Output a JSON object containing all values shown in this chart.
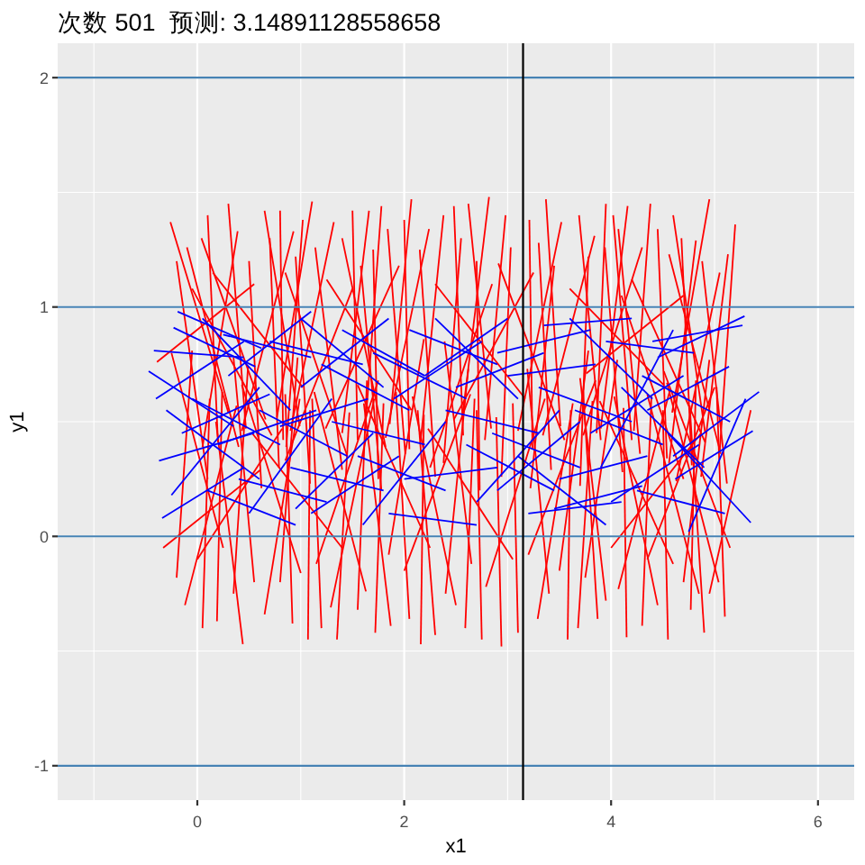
{
  "chart_data": {
    "type": "line",
    "title": "次数 501  预测: 3.14891128558658",
    "xlabel": "x1",
    "ylabel": "y1",
    "xlim": [
      -1.35,
      6.35
    ],
    "ylim": [
      -1.15,
      2.15
    ],
    "xticks": [
      0,
      2,
      4,
      6
    ],
    "yticks": [
      -1,
      0,
      1,
      2
    ],
    "grid": true,
    "ref_lines": [
      {
        "axis": "y",
        "value": -1,
        "color": "#4682b4"
      },
      {
        "axis": "y",
        "value": 0,
        "color": "#4682b4"
      },
      {
        "axis": "y",
        "value": 1,
        "color": "#4682b4"
      },
      {
        "axis": "y",
        "value": 2,
        "color": "#4682b4"
      },
      {
        "axis": "x",
        "value": 3.14891128558658,
        "color": "#000000"
      }
    ],
    "series": [
      {
        "color": "#ff0000",
        "x": [
          -0.26,
          0.3
        ],
        "values": [
          1.37,
          0.54
        ]
      },
      {
        "color": "#ff0000",
        "x": [
          -0.1,
          0.4
        ],
        "values": [
          1.26,
          0.39
        ]
      },
      {
        "color": "#ff0000",
        "x": [
          0.04,
          0.66
        ],
        "values": [
          1.3,
          0.51
        ]
      },
      {
        "color": "#ff0000",
        "x": [
          0.3,
          0.47
        ],
        "values": [
          1.45,
          0.47
        ]
      },
      {
        "color": "#ff0000",
        "x": [
          0.39,
          0.05
        ],
        "values": [
          1.33,
          0.39
        ]
      },
      {
        "color": "#ff0000",
        "x": [
          0.65,
          0.99
        ],
        "values": [
          1.42,
          0.48
        ]
      },
      {
        "color": "#ff0000",
        "x": [
          0.8,
          0.83
        ],
        "values": [
          1.42,
          0.42
        ]
      },
      {
        "color": "#ff0000",
        "x": [
          0.93,
          0.43
        ],
        "values": [
          1.33,
          0.46
        ]
      },
      {
        "color": "#ff0000",
        "x": [
          1.11,
          0.77
        ],
        "values": [
          1.46,
          0.52
        ]
      },
      {
        "color": "#ff0000",
        "x": [
          1.14,
          1.4
        ],
        "values": [
          1.26,
          0.29
        ]
      },
      {
        "color": "#ff0000",
        "x": [
          1.32,
          0.9
        ],
        "values": [
          1.37,
          0.46
        ]
      },
      {
        "color": "#ff0000",
        "x": [
          1.5,
          1.55
        ],
        "values": [
          1.42,
          0.42
        ]
      },
      {
        "color": "#ff0000",
        "x": [
          1.66,
          1.4
        ],
        "values": [
          1.42,
          0.45
        ]
      },
      {
        "color": "#ff0000",
        "x": [
          1.84,
          2.01
        ],
        "values": [
          1.34,
          0.36
        ]
      },
      {
        "color": "#ff0000",
        "x": [
          2.07,
          1.86
        ],
        "values": [
          1.47,
          0.49
        ]
      },
      {
        "color": "#ff0000",
        "x": [
          2.24,
          1.82
        ],
        "values": [
          1.34,
          0.43
        ]
      },
      {
        "color": "#ff0000",
        "x": [
          2.48,
          2.57
        ],
        "values": [
          1.44,
          0.44
        ]
      },
      {
        "color": "#ff0000",
        "x": [
          2.82,
          2.56
        ],
        "values": [
          1.48,
          0.51
        ]
      },
      {
        "color": "#ff0000",
        "x": [
          2.91,
          3.55
        ],
        "values": [
          1.19,
          0.42
        ]
      },
      {
        "color": "#ff0000",
        "x": [
          3.03,
          2.94
        ],
        "values": [
          1.26,
          0.26
        ]
      },
      {
        "color": "#ff0000",
        "x": [
          3.37,
          3.51
        ],
        "values": [
          1.47,
          0.48
        ]
      },
      {
        "color": "#ff0000",
        "x": [
          3.52,
          3.1
        ],
        "values": [
          1.37,
          0.46
        ]
      },
      {
        "color": "#ff0000",
        "x": [
          3.69,
          3.9
        ],
        "values": [
          1.4,
          0.42
        ]
      },
      {
        "color": "#ff0000",
        "x": [
          3.84,
          3.34
        ],
        "values": [
          1.31,
          0.44
        ]
      },
      {
        "color": "#ff0000",
        "x": [
          3.94,
          4.11
        ],
        "values": [
          1.26,
          0.28
        ]
      },
      {
        "color": "#ff0000",
        "x": [
          4.07,
          4.28
        ],
        "values": [
          1.34,
          0.36
        ]
      },
      {
        "color": "#ff0000",
        "x": [
          4.16,
          3.9
        ],
        "values": [
          1.44,
          0.47
        ]
      },
      {
        "color": "#ff0000",
        "x": [
          4.3,
          3.73
        ],
        "values": [
          1.26,
          0.44
        ]
      },
      {
        "color": "#ff0000",
        "x": [
          4.45,
          4.54
        ],
        "values": [
          1.34,
          0.34
        ]
      },
      {
        "color": "#ff0000",
        "x": [
          4.56,
          5.06
        ],
        "values": [
          1.23,
          0.36
        ]
      },
      {
        "color": "#ff0000",
        "x": [
          4.82,
          4.56
        ],
        "values": [
          1.29,
          0.32
        ]
      },
      {
        "color": "#ff0000",
        "x": [
          4.95,
          4.59
        ],
        "values": [
          1.47,
          0.54
        ]
      },
      {
        "color": "#ff0000",
        "x": [
          5.13,
          4.87
        ],
        "values": [
          1.23,
          0.26
        ]
      },
      {
        "color": "#ff0000",
        "x": [
          0.15,
          1.02
        ],
        "values": [
          1.15,
          0.65
        ]
      },
      {
        "color": "#ff0000",
        "x": [
          0.55,
          -0.39
        ],
        "values": [
          1.1,
          0.76
        ]
      },
      {
        "color": "#ff0000",
        "x": [
          1.25,
          2.07
        ],
        "values": [
          1.12,
          0.55
        ]
      },
      {
        "color": "#ff0000",
        "x": [
          1.95,
          1.24
        ],
        "values": [
          1.18,
          0.47
        ]
      },
      {
        "color": "#ff0000",
        "x": [
          2.3,
          3.17
        ],
        "values": [
          1.1,
          0.6
        ]
      },
      {
        "color": "#ff0000",
        "x": [
          2.7,
          2.73
        ],
        "values": [
          1.2,
          0.2
        ]
      },
      {
        "color": "#ff0000",
        "x": [
          3.25,
          2.48
        ],
        "values": [
          1.15,
          0.51
        ]
      },
      {
        "color": "#ff0000",
        "x": [
          3.6,
          4.51
        ],
        "values": [
          1.08,
          0.66
        ]
      },
      {
        "color": "#ff0000",
        "x": [
          4.2,
          4.91
        ],
        "values": [
          1.12,
          0.41
        ]
      },
      {
        "color": "#ff0000",
        "x": [
          4.7,
          3.76
        ],
        "values": [
          1.05,
          0.71
        ]
      },
      {
        "color": "#ff0000",
        "x": [
          -0.05,
          0.72
        ],
        "values": [
          1.08,
          0.44
        ]
      },
      {
        "color": "#ff0000",
        "x": [
          0.95,
          1.09
        ],
        "values": [
          1.22,
          0.23
        ]
      },
      {
        "color": "#ff0000",
        "x": [
          1.7,
          1.75
        ],
        "values": [
          1.25,
          0.25
        ]
      },
      {
        "color": "#ff0000",
        "x": [
          2.55,
          2.38
        ],
        "values": [
          1.3,
          0.32
        ]
      },
      {
        "color": "#ff0000",
        "x": [
          3.21,
          3.24
        ],
        "values": [
          1.38,
          0.38
        ]
      },
      {
        "color": "#ff0000",
        "x": [
          3.95,
          3.86
        ],
        "values": [
          1.45,
          0.45
        ]
      },
      {
        "color": "#ff0000",
        "x": [
          5.05,
          4.63
        ],
        "values": [
          1.15,
          0.24
        ]
      },
      {
        "color": "#ff0000",
        "x": [
          0.7,
          0.79
        ],
        "values": [
          1.3,
          0.3
        ]
      },
      {
        "color": "#ff0000",
        "x": [
          1.4,
          1.82
        ],
        "values": [
          1.3,
          0.39
        ]
      },
      {
        "color": "#ff0000",
        "x": [
          2.0,
          2.05
        ],
        "values": [
          1.38,
          0.38
        ]
      },
      {
        "color": "#ff0000",
        "x": [
          4.6,
          4.91
        ],
        "values": [
          1.4,
          0.45
        ]
      },
      {
        "color": "#ff0000",
        "x": [
          0.1,
          0.2
        ],
        "values": [
          1.4,
          0.41
        ]
      },
      {
        "color": "#ff0000",
        "x": [
          0.5,
          0.62
        ],
        "values": [
          1.2,
          0.21
        ]
      },
      {
        "color": "#ff0000",
        "x": [
          1.02,
          0.86
        ],
        "values": [
          1.38,
          0.39
        ]
      },
      {
        "color": "#ff0000",
        "x": [
          1.58,
          1.78
        ],
        "values": [
          1.18,
          0.2
        ]
      },
      {
        "color": "#ff0000",
        "x": [
          1.78,
          1.62
        ],
        "values": [
          1.44,
          0.45
        ]
      },
      {
        "color": "#ff0000",
        "x": [
          2.15,
          2.3
        ],
        "values": [
          1.25,
          0.26
        ]
      },
      {
        "color": "#ff0000",
        "x": [
          2.38,
          2.16
        ],
        "values": [
          1.4,
          0.42
        ]
      },
      {
        "color": "#ff0000",
        "x": [
          2.62,
          2.84
        ],
        "values": [
          1.45,
          0.47
        ]
      },
      {
        "color": "#ff0000",
        "x": [
          2.98,
          2.78
        ],
        "values": [
          1.4,
          0.42
        ]
      },
      {
        "color": "#ff0000",
        "x": [
          3.3,
          3.42
        ],
        "values": [
          1.28,
          0.29
        ]
      },
      {
        "color": "#ff0000",
        "x": [
          3.45,
          3.22
        ],
        "values": [
          1.18,
          0.21
        ]
      },
      {
        "color": "#ff0000",
        "x": [
          3.78,
          3.7
        ],
        "values": [
          1.22,
          0.22
        ]
      },
      {
        "color": "#ff0000",
        "x": [
          4.02,
          4.2
        ],
        "values": [
          1.4,
          0.42
        ]
      },
      {
        "color": "#ff0000",
        "x": [
          4.38,
          4.22
        ],
        "values": [
          1.45,
          0.46
        ]
      },
      {
        "color": "#ff0000",
        "x": [
          4.68,
          4.78
        ],
        "values": [
          1.3,
          0.31
        ]
      },
      {
        "color": "#ff0000",
        "x": [
          4.88,
          5.12
        ],
        "values": [
          1.2,
          0.23
        ]
      },
      {
        "color": "#ff0000",
        "x": [
          5.2,
          5.05
        ],
        "values": [
          1.36,
          0.37
        ]
      },
      {
        "color": "#ff0000",
        "x": [
          -0.2,
          0.1
        ],
        "values": [
          1.2,
          0.25
        ]
      },
      {
        "color": "#ff0000",
        "x": [
          0.85,
          1.45
        ],
        "values": [
          1.15,
          0.35
        ]
      },
      {
        "color": "#ff0000",
        "x": [
          1.5,
          0.85
        ],
        "values": [
          1.08,
          0.33
        ]
      },
      {
        "color": "#ff0000",
        "x": [
          2.85,
          2.25
        ],
        "values": [
          1.1,
          0.3
        ]
      },
      {
        "color": "#ff0000",
        "x": [
          4.1,
          4.7
        ],
        "values": [
          1.05,
          0.25
        ]
      },
      {
        "color": "#ff0000",
        "x": [
          -0.12,
          0.38
        ],
        "values": [
          -0.3,
          0.57
        ]
      },
      {
        "color": "#ff0000",
        "x": [
          0.19,
          0.24
        ],
        "values": [
          -0.37,
          0.63
        ]
      },
      {
        "color": "#ff0000",
        "x": [
          0.44,
          0.18
        ],
        "values": [
          -0.47,
          0.5
        ]
      },
      {
        "color": "#ff0000",
        "x": [
          0.65,
          0.99
        ],
        "values": [
          -0.34,
          0.6
        ]
      },
      {
        "color": "#ff0000",
        "x": [
          1.0,
          0.43
        ],
        "values": [
          -0.16,
          0.66
        ]
      },
      {
        "color": "#ff0000",
        "x": [
          1.07,
          1.09
        ],
        "values": [
          -0.45,
          0.55
        ]
      },
      {
        "color": "#ff0000",
        "x": [
          1.29,
          1.71
        ],
        "values": [
          -0.31,
          0.6
        ]
      },
      {
        "color": "#ff0000",
        "x": [
          1.55,
          1.64
        ],
        "values": [
          -0.32,
          0.68
        ]
      },
      {
        "color": "#ff0000",
        "x": [
          1.63,
          1.13
        ],
        "values": [
          -0.24,
          0.63
        ]
      },
      {
        "color": "#ff0000",
        "x": [
          1.87,
          1.61
        ],
        "values": [
          -0.39,
          0.58
        ]
      },
      {
        "color": "#ff0000",
        "x": [
          2.16,
          2.19
        ],
        "values": [
          -0.47,
          0.53
        ]
      },
      {
        "color": "#ff0000",
        "x": [
          2.3,
          2.13
        ],
        "values": [
          -0.43,
          0.55
        ]
      },
      {
        "color": "#ff0000",
        "x": [
          2.5,
          2.08
        ],
        "values": [
          -0.3,
          0.61
        ]
      },
      {
        "color": "#ff0000",
        "x": [
          -0.33,
          0.61
        ],
        "values": [
          -0.05,
          0.29
        ]
      },
      {
        "color": "#ff0000",
        "x": [
          2.59,
          2.68
        ],
        "values": [
          -0.4,
          0.6
        ]
      },
      {
        "color": "#ff0000",
        "x": [
          2.94,
          2.89
        ],
        "values": [
          -0.48,
          0.52
        ]
      },
      {
        "color": "#ff0000",
        "x": [
          3.29,
          3.63
        ],
        "values": [
          -0.36,
          0.58
        ]
      },
      {
        "color": "#ff0000",
        "x": [
          3.58,
          3.61
        ],
        "values": [
          -0.45,
          0.55
        ]
      },
      {
        "color": "#ff0000",
        "x": [
          3.87,
          3.73
        ],
        "values": [
          -0.36,
          0.63
        ]
      },
      {
        "color": "#ff0000",
        "x": [
          4.07,
          4.57
        ],
        "values": [
          -0.23,
          0.64
        ]
      },
      {
        "color": "#ff0000",
        "x": [
          4.3,
          4.39
        ],
        "values": [
          -0.39,
          0.61
        ]
      },
      {
        "color": "#ff0000",
        "x": [
          4.45,
          4.03
        ],
        "values": [
          -0.3,
          0.61
        ]
      },
      {
        "color": "#ff0000",
        "x": [
          4.77,
          4.82
        ],
        "values": [
          -0.32,
          0.68
        ]
      },
      {
        "color": "#ff0000",
        "x": [
          5.04,
          4.54
        ],
        "values": [
          -0.2,
          0.67
        ]
      },
      {
        "color": "#ff0000",
        "x": [
          2.79,
          3.36
        ],
        "values": [
          -0.22,
          0.6
        ]
      },
      {
        "color": "#ff0000",
        "x": [
          0.0,
          0.82
        ],
        "values": [
          -0.1,
          0.47
        ]
      },
      {
        "color": "#ff0000",
        "x": [
          0.8,
          0.97
        ],
        "values": [
          -0.2,
          0.78
        ]
      },
      {
        "color": "#ff0000",
        "x": [
          1.4,
          0.53
        ],
        "values": [
          -0.05,
          0.45
        ]
      },
      {
        "color": "#ff0000",
        "x": [
          2.0,
          2.64
        ],
        "values": [
          -0.15,
          0.62
        ]
      },
      {
        "color": "#ff0000",
        "x": [
          3.05,
          2.23
        ],
        "values": [
          -0.1,
          0.47
        ]
      },
      {
        "color": "#ff0000",
        "x": [
          3.4,
          3.19
        ],
        "values": [
          -0.25,
          0.73
        ]
      },
      {
        "color": "#ff0000",
        "x": [
          4.0,
          4.87
        ],
        "values": [
          -0.05,
          0.45
        ]
      },
      {
        "color": "#ff0000",
        "x": [
          4.6,
          3.89
        ],
        "values": [
          -0.12,
          0.59
        ]
      },
      {
        "color": "#ff0000",
        "x": [
          5.15,
          4.51
        ],
        "values": [
          -0.05,
          0.72
        ]
      },
      {
        "color": "#ff0000",
        "x": [
          0.35,
          0.49
        ],
        "values": [
          -0.25,
          0.74
        ]
      },
      {
        "color": "#ff0000",
        "x": [
          1.2,
          1.11
        ],
        "values": [
          -0.4,
          0.6
        ]
      },
      {
        "color": "#ff0000",
        "x": [
          1.85,
          2.19
        ],
        "values": [
          -0.08,
          0.86
        ]
      },
      {
        "color": "#ff0000",
        "x": [
          2.65,
          2.39
        ],
        "values": [
          -0.12,
          0.85
        ]
      },
      {
        "color": "#ff0000",
        "x": [
          3.75,
          4.06
        ],
        "values": [
          -0.18,
          0.77
        ]
      },
      {
        "color": "#ff0000",
        "x": [
          4.9,
          4.76
        ],
        "values": [
          -0.42,
          0.57
        ]
      },
      {
        "color": "#ff0000",
        "x": [
          4.95,
          5.35
        ],
        "values": [
          -0.25,
          0.55
        ]
      },
      {
        "color": "#ff0000",
        "x": [
          0.05,
          0.12
        ],
        "values": [
          -0.4,
          0.6
        ]
      },
      {
        "color": "#ff0000",
        "x": [
          0.55,
          0.35
        ],
        "values": [
          -0.2,
          0.78
        ]
      },
      {
        "color": "#ff0000",
        "x": [
          0.92,
          0.85
        ],
        "values": [
          -0.38,
          0.62
        ]
      },
      {
        "color": "#ff0000",
        "x": [
          1.35,
          1.47
        ],
        "values": [
          -0.45,
          0.54
        ]
      },
      {
        "color": "#ff0000",
        "x": [
          1.72,
          1.8
        ],
        "values": [
          -0.42,
          0.58
        ]
      },
      {
        "color": "#ff0000",
        "x": [
          2.05,
          1.92
        ],
        "values": [
          -0.36,
          0.63
        ]
      },
      {
        "color": "#ff0000",
        "x": [
          2.4,
          2.62
        ],
        "values": [
          -0.25,
          0.73
        ]
      },
      {
        "color": "#ff0000",
        "x": [
          2.75,
          2.7
        ],
        "values": [
          -0.45,
          0.55
        ]
      },
      {
        "color": "#ff0000",
        "x": [
          3.1,
          3.05
        ],
        "values": [
          -0.42,
          0.58
        ]
      },
      {
        "color": "#ff0000",
        "x": [
          3.5,
          3.78
        ],
        "values": [
          -0.15,
          0.81
        ]
      },
      {
        "color": "#ff0000",
        "x": [
          3.68,
          3.82
        ],
        "values": [
          -0.4,
          0.59
        ]
      },
      {
        "color": "#ff0000",
        "x": [
          4.15,
          4.12
        ],
        "values": [
          -0.44,
          0.56
        ]
      },
      {
        "color": "#ff0000",
        "x": [
          4.55,
          4.5
        ],
        "values": [
          -0.45,
          0.55
        ]
      },
      {
        "color": "#ff0000",
        "x": [
          4.7,
          4.95
        ],
        "values": [
          -0.2,
          0.77
        ]
      },
      {
        "color": "#ff0000",
        "x": [
          5.1,
          5.02
        ],
        "values": [
          -0.35,
          0.65
        ]
      },
      {
        "color": "#ff0000",
        "x": [
          -0.2,
          -0.05
        ],
        "values": [
          -0.18,
          0.81
        ]
      },
      {
        "color": "#ff0000",
        "x": [
          0.25,
          -0.25
        ],
        "values": [
          -0.05,
          0.8
        ]
      },
      {
        "color": "#ff0000",
        "x": [
          1.15,
          1.75
        ],
        "values": [
          -0.12,
          0.68
        ]
      },
      {
        "color": "#ff0000",
        "x": [
          2.25,
          1.55
        ],
        "values": [
          -0.05,
          0.66
        ]
      },
      {
        "color": "#ff0000",
        "x": [
          3.2,
          3.85
        ],
        "values": [
          -0.08,
          0.68
        ]
      },
      {
        "color": "#ff0000",
        "x": [
          3.95,
          3.7
        ],
        "values": [
          -0.28,
          0.69
        ]
      },
      {
        "color": "#ff0000",
        "x": [
          4.35,
          5.0
        ],
        "values": [
          -0.1,
          0.65
        ]
      },
      {
        "color": "#ff0000",
        "x": [
          4.85,
          4.35
        ],
        "values": [
          -0.25,
          0.62
        ]
      },
      {
        "color": "#0000ff",
        "x": [
          -0.47,
          0.35
        ],
        "values": [
          0.72,
          0.48
        ]
      },
      {
        "color": "#0000ff",
        "x": [
          -0.19,
          0.62
        ],
        "values": [
          0.98,
          0.82
        ]
      },
      {
        "color": "#0000ff",
        "x": [
          -0.23,
          0.56
        ],
        "values": [
          0.91,
          0.74
        ]
      },
      {
        "color": "#0000ff",
        "x": [
          -0.42,
          0.45
        ],
        "values": [
          0.81,
          0.78
        ]
      },
      {
        "color": "#0000ff",
        "x": [
          -0.37,
          0.55
        ],
        "values": [
          0.33,
          0.45
        ]
      },
      {
        "color": "#0000ff",
        "x": [
          -0.34,
          0.45
        ],
        "values": [
          0.08,
          0.3
        ]
      },
      {
        "color": "#0000ff",
        "x": [
          -0.25,
          0.6
        ],
        "values": [
          0.18,
          0.65
        ]
      },
      {
        "color": "#0000ff",
        "x": [
          -0.3,
          0.6
        ],
        "values": [
          0.55,
          0.25
        ]
      },
      {
        "color": "#0000ff",
        "x": [
          0.05,
          0.9
        ],
        "values": [
          0.95,
          0.55
        ]
      },
      {
        "color": "#0000ff",
        "x": [
          0.2,
          1.15
        ],
        "values": [
          0.4,
          0.55
        ]
      },
      {
        "color": "#0000ff",
        "x": [
          0.5,
          1.3
        ],
        "values": [
          0.1,
          0.6
        ]
      },
      {
        "color": "#0000ff",
        "x": [
          0.7,
          1.6
        ],
        "values": [
          0.85,
          0.75
        ]
      },
      {
        "color": "#0000ff",
        "x": [
          0.9,
          1.8
        ],
        "values": [
          0.3,
          0.2
        ]
      },
      {
        "color": "#0000ff",
        "x": [
          1.0,
          1.85
        ],
        "values": [
          0.65,
          0.95
        ]
      },
      {
        "color": "#0000ff",
        "x": [
          1.3,
          2.2
        ],
        "values": [
          0.5,
          0.4
        ]
      },
      {
        "color": "#0000ff",
        "x": [
          1.6,
          2.4
        ],
        "values": [
          0.05,
          0.5
        ]
      },
      {
        "color": "#0000ff",
        "x": [
          1.7,
          2.6
        ],
        "values": [
          0.8,
          0.6
        ]
      },
      {
        "color": "#0000ff",
        "x": [
          2.0,
          2.9
        ],
        "values": [
          0.25,
          0.3
        ]
      },
      {
        "color": "#0000ff",
        "x": [
          2.3,
          3.1
        ],
        "values": [
          0.95,
          0.6
        ]
      },
      {
        "color": "#0000ff",
        "x": [
          2.4,
          3.3
        ],
        "values": [
          0.55,
          0.45
        ]
      },
      {
        "color": "#0000ff",
        "x": [
          2.7,
          3.5
        ],
        "values": [
          0.15,
          0.55
        ]
      },
      {
        "color": "#0000ff",
        "x": [
          2.9,
          3.8
        ],
        "values": [
          0.8,
          0.9
        ]
      },
      {
        "color": "#0000ff",
        "x": [
          3.1,
          3.95
        ],
        "values": [
          0.35,
          0.05
        ]
      },
      {
        "color": "#0000ff",
        "x": [
          3.3,
          4.2
        ],
        "values": [
          0.65,
          0.5
        ]
      },
      {
        "color": "#0000ff",
        "x": [
          3.5,
          4.35
        ],
        "values": [
          0.25,
          0.35
        ]
      },
      {
        "color": "#0000ff",
        "x": [
          3.6,
          4.4
        ],
        "values": [
          0.95,
          0.6
        ]
      },
      {
        "color": "#0000ff",
        "x": [
          3.8,
          4.7
        ],
        "values": [
          0.45,
          0.7
        ]
      },
      {
        "color": "#0000ff",
        "x": [
          4.0,
          4.85
        ],
        "values": [
          0.15,
          0.4
        ]
      },
      {
        "color": "#0000ff",
        "x": [
          4.45,
          5.29
        ],
        "values": [
          0.78,
          0.96
        ]
      },
      {
        "color": "#0000ff",
        "x": [
          4.4,
          5.27
        ],
        "values": [
          0.85,
          0.92
        ]
      },
      {
        "color": "#0000ff",
        "x": [
          4.35,
          5.14
        ],
        "values": [
          0.55,
          0.74
        ]
      },
      {
        "color": "#0000ff",
        "x": [
          4.6,
          5.43
        ],
        "values": [
          0.35,
          0.63
        ]
      },
      {
        "color": "#0000ff",
        "x": [
          4.62,
          5.37
        ],
        "values": [
          0.25,
          0.46
        ]
      },
      {
        "color": "#0000ff",
        "x": [
          4.55,
          5.35
        ],
        "values": [
          0.45,
          0.06
        ]
      },
      {
        "color": "#0000ff",
        "x": [
          5.3,
          4.75
        ],
        "values": [
          0.6,
          0.02
        ]
      },
      {
        "color": "#0000ff",
        "x": [
          0.1,
          0.95
        ],
        "values": [
          0.2,
          0.05
        ]
      },
      {
        "color": "#0000ff",
        "x": [
          0.3,
          1.1
        ],
        "values": [
          0.7,
          0.98
        ]
      },
      {
        "color": "#0000ff",
        "x": [
          1.1,
          1.95
        ],
        "values": [
          0.1,
          0.35
        ]
      },
      {
        "color": "#0000ff",
        "x": [
          1.9,
          2.75
        ],
        "values": [
          0.6,
          0.85
        ]
      },
      {
        "color": "#0000ff",
        "x": [
          2.6,
          3.45
        ],
        "values": [
          0.4,
          0.2
        ]
      },
      {
        "color": "#0000ff",
        "x": [
          3.2,
          4.1
        ],
        "values": [
          0.1,
          0.15
        ]
      },
      {
        "color": "#0000ff",
        "x": [
          3.9,
          4.6
        ],
        "values": [
          0.3,
          0.9
        ]
      },
      {
        "color": "#0000ff",
        "x": [
          2.2,
          3.0
        ],
        "values": [
          0.7,
          0.95
        ]
      },
      {
        "color": "#0000ff",
        "x": [
          1.4,
          2.2
        ],
        "values": [
          0.9,
          0.7
        ]
      },
      {
        "color": "#0000ff",
        "x": [
          0.6,
          1.45
        ],
        "values": [
          0.55,
          0.35
        ]
      },
      {
        "color": "#0000ff",
        "x": [
          -0.05,
          0.8
        ],
        "values": [
          0.6,
          0.4
        ]
      },
      {
        "color": "#0000ff",
        "x": [
          3.0,
          3.85
        ],
        "values": [
          0.7,
          0.75
        ]
      },
      {
        "color": "#0000ff",
        "x": [
          4.1,
          4.9
        ],
        "values": [
          0.65,
          0.3
        ]
      },
      {
        "color": "#0000ff",
        "x": [
          -0.15,
          0.7
        ],
        "values": [
          0.45,
          0.62
        ]
      },
      {
        "color": "#0000ff",
        "x": [
          0.25,
          1.1
        ],
        "values": [
          0.88,
          0.78
        ]
      },
      {
        "color": "#0000ff",
        "x": [
          0.8,
          1.65
        ],
        "values": [
          0.48,
          0.6
        ]
      },
      {
        "color": "#0000ff",
        "x": [
          1.2,
          2.05
        ],
        "values": [
          0.75,
          0.55
        ]
      },
      {
        "color": "#0000ff",
        "x": [
          1.55,
          2.4
        ],
        "values": [
          0.35,
          0.2
        ]
      },
      {
        "color": "#0000ff",
        "x": [
          2.05,
          2.9
        ],
        "values": [
          0.9,
          0.75
        ]
      },
      {
        "color": "#0000ff",
        "x": [
          2.5,
          3.35
        ],
        "values": [
          0.65,
          0.8
        ]
      },
      {
        "color": "#0000ff",
        "x": [
          2.85,
          3.7
        ],
        "values": [
          0.45,
          0.3
        ]
      },
      {
        "color": "#0000ff",
        "x": [
          3.35,
          4.2
        ],
        "values": [
          0.92,
          0.95
        ]
      },
      {
        "color": "#0000ff",
        "x": [
          3.65,
          4.5
        ],
        "values": [
          0.55,
          0.4
        ]
      },
      {
        "color": "#0000ff",
        "x": [
          4.25,
          5.1
        ],
        "values": [
          0.2,
          0.1
        ]
      },
      {
        "color": "#0000ff",
        "x": [
          4.3,
          5.15
        ],
        "values": [
          0.7,
          0.5
        ]
      },
      {
        "color": "#0000ff",
        "x": [
          0.4,
          1.25
        ],
        "values": [
          0.25,
          0.15
        ]
      },
      {
        "color": "#0000ff",
        "x": [
          1.85,
          2.7
        ],
        "values": [
          0.1,
          0.05
        ]
      },
      {
        "color": "#0000ff",
        "x": [
          3.45,
          4.3
        ],
        "values": [
          0.12,
          0.22
        ]
      },
      {
        "color": "#0000ff",
        "x": [
          -0.4,
          0.45
        ],
        "values": [
          0.6,
          0.85
        ]
      },
      {
        "color": "#0000ff",
        "x": [
          1.0,
          1.8
        ],
        "values": [
          0.95,
          0.65
        ]
      },
      {
        "color": "#0000ff",
        "x": [
          2.9,
          3.7
        ],
        "values": [
          0.2,
          0.5
        ]
      },
      {
        "color": "#0000ff",
        "x": [
          3.95,
          4.8
        ],
        "values": [
          0.85,
          0.8
        ]
      },
      {
        "color": "#0000ff",
        "x": [
          0.95,
          1.7
        ],
        "values": [
          0.12,
          0.45
        ]
      }
    ]
  }
}
